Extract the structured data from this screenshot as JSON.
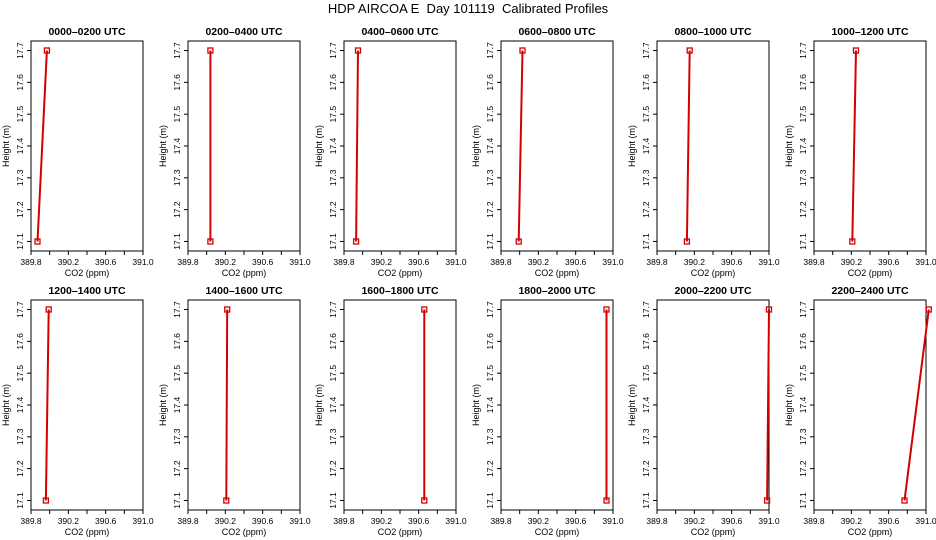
{
  "title": "HDP AIRCOA E  Day 101119  Calibrated Profiles",
  "axes": {
    "xlabel": "CO2 (ppm)",
    "ylabel": "Height (m)",
    "xlim": [
      389.8,
      391.0
    ],
    "ylim": [
      17.07,
      17.73
    ],
    "xticks": [
      "389.8",
      "390.2",
      "390.6",
      "391.0"
    ],
    "xtick_values": [
      389.8,
      390.0,
      390.2,
      390.4,
      390.6,
      390.8,
      391.0
    ],
    "xtick_labels": [
      "389.8",
      "",
      "390.2",
      "",
      "390.6",
      "",
      "391.0"
    ],
    "yticks": [
      17.1,
      17.2,
      17.3,
      17.4,
      17.5,
      17.6,
      17.7
    ],
    "ytick_labels": [
      "17.1",
      "17.2",
      "17.3",
      "17.4",
      "17.5",
      "17.6",
      "17.7"
    ]
  },
  "style": {
    "line_color": "#d40000",
    "marker_color": "#d40000",
    "axis_color": "#000000"
  },
  "chart_data": [
    {
      "type": "line",
      "title": "0000–0200 UTC",
      "x": [
        389.87,
        389.97
      ],
      "y": [
        17.1,
        17.7
      ]
    },
    {
      "type": "line",
      "title": "0200–0400 UTC",
      "x": [
        390.04,
        390.04
      ],
      "y": [
        17.1,
        17.7
      ]
    },
    {
      "type": "line",
      "title": "0400–0600 UTC",
      "x": [
        389.93,
        389.95
      ],
      "y": [
        17.1,
        17.7
      ]
    },
    {
      "type": "line",
      "title": "0600–0800 UTC",
      "x": [
        389.99,
        390.03
      ],
      "y": [
        17.1,
        17.7
      ]
    },
    {
      "type": "line",
      "title": "0800–1000 UTC",
      "x": [
        390.12,
        390.15
      ],
      "y": [
        17.1,
        17.7
      ]
    },
    {
      "type": "line",
      "title": "1000–1200 UTC",
      "x": [
        390.21,
        390.25
      ],
      "y": [
        17.1,
        17.7
      ]
    },
    {
      "type": "line",
      "title": "1200–1400 UTC",
      "x": [
        389.96,
        389.99
      ],
      "y": [
        17.1,
        17.7
      ]
    },
    {
      "type": "line",
      "title": "1400–1600 UTC",
      "x": [
        390.21,
        390.22
      ],
      "y": [
        17.1,
        17.7
      ]
    },
    {
      "type": "line",
      "title": "1600–1800 UTC",
      "x": [
        390.66,
        390.66
      ],
      "y": [
        17.1,
        17.7
      ]
    },
    {
      "type": "line",
      "title": "1800–2000 UTC",
      "x": [
        390.93,
        390.93
      ],
      "y": [
        17.1,
        17.7
      ]
    },
    {
      "type": "line",
      "title": "2000–2200 UTC",
      "x": [
        390.98,
        391.0
      ],
      "y": [
        17.1,
        17.7
      ]
    },
    {
      "type": "line",
      "title": "2200–2400 UTC",
      "x": [
        390.77,
        391.03
      ],
      "y": [
        17.1,
        17.7
      ]
    }
  ]
}
